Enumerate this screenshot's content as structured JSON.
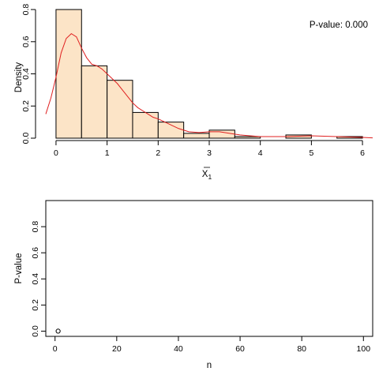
{
  "chart_data": [
    {
      "type": "histogram",
      "title": "",
      "annotation": "P-value: 0.000",
      "xlabel_base": "X",
      "xlabel_sub": "1",
      "ylabel": "Density",
      "xlim": [
        -0.2,
        6.2
      ],
      "ylim": [
        0,
        0.82
      ],
      "x_ticks": [
        "0",
        "1",
        "2",
        "3",
        "4",
        "5",
        "6"
      ],
      "y_ticks": [
        "0.0",
        "0.2",
        "0.4",
        "0.6",
        "0.8"
      ],
      "bin_width": 0.5,
      "bins": [
        {
          "x0": 0.0,
          "x1": 0.5,
          "density": 0.8
        },
        {
          "x0": 0.5,
          "x1": 1.0,
          "density": 0.45
        },
        {
          "x0": 1.0,
          "x1": 1.5,
          "density": 0.36
        },
        {
          "x0": 1.5,
          "x1": 2.0,
          "density": 0.16
        },
        {
          "x0": 2.0,
          "x1": 2.5,
          "density": 0.1
        },
        {
          "x0": 2.5,
          "x1": 3.0,
          "density": 0.03
        },
        {
          "x0": 3.0,
          "x1": 3.5,
          "density": 0.05
        },
        {
          "x0": 3.5,
          "x1": 4.0,
          "density": 0.01
        },
        {
          "x0": 4.0,
          "x1": 4.5,
          "density": 0.0
        },
        {
          "x0": 4.5,
          "x1": 5.0,
          "density": 0.02
        },
        {
          "x0": 5.0,
          "x1": 5.5,
          "density": 0.0
        },
        {
          "x0": 5.5,
          "x1": 6.0,
          "density": 0.01
        }
      ],
      "density_curve": {
        "x": [
          -0.2,
          -0.1,
          0.0,
          0.1,
          0.2,
          0.3,
          0.4,
          0.5,
          0.6,
          0.7,
          0.8,
          0.9,
          1.0,
          1.1,
          1.2,
          1.3,
          1.4,
          1.5,
          1.6,
          1.7,
          1.8,
          1.9,
          2.0,
          2.2,
          2.4,
          2.6,
          2.8,
          3.0,
          3.2,
          3.4,
          3.6,
          3.8,
          4.0,
          4.5,
          5.0,
          5.5,
          6.0,
          6.2
        ],
        "y": [
          0.15,
          0.25,
          0.38,
          0.53,
          0.62,
          0.65,
          0.63,
          0.56,
          0.5,
          0.46,
          0.45,
          0.43,
          0.4,
          0.37,
          0.34,
          0.3,
          0.26,
          0.22,
          0.19,
          0.17,
          0.15,
          0.13,
          0.12,
          0.09,
          0.06,
          0.04,
          0.035,
          0.04,
          0.04,
          0.03,
          0.02,
          0.015,
          0.01,
          0.01,
          0.015,
          0.01,
          0.005,
          0.002
        ]
      },
      "colors": {
        "bar_fill": "#fce4c7",
        "bar_stroke": "#000000",
        "curve": "#e02020"
      }
    },
    {
      "type": "scatter",
      "title": "",
      "xlabel": "n",
      "ylabel": "P-value",
      "xlim": [
        -3,
        103
      ],
      "ylim": [
        -0.04,
        1.0
      ],
      "x_ticks": [
        "0",
        "20",
        "40",
        "60",
        "80",
        "100"
      ],
      "y_ticks": [
        "0.0",
        "0.2",
        "0.4",
        "0.6",
        "0.8"
      ],
      "points": [
        {
          "x": 1,
          "y": 0.0
        }
      ],
      "box": true,
      "colors": {
        "point": "#000000"
      }
    }
  ]
}
